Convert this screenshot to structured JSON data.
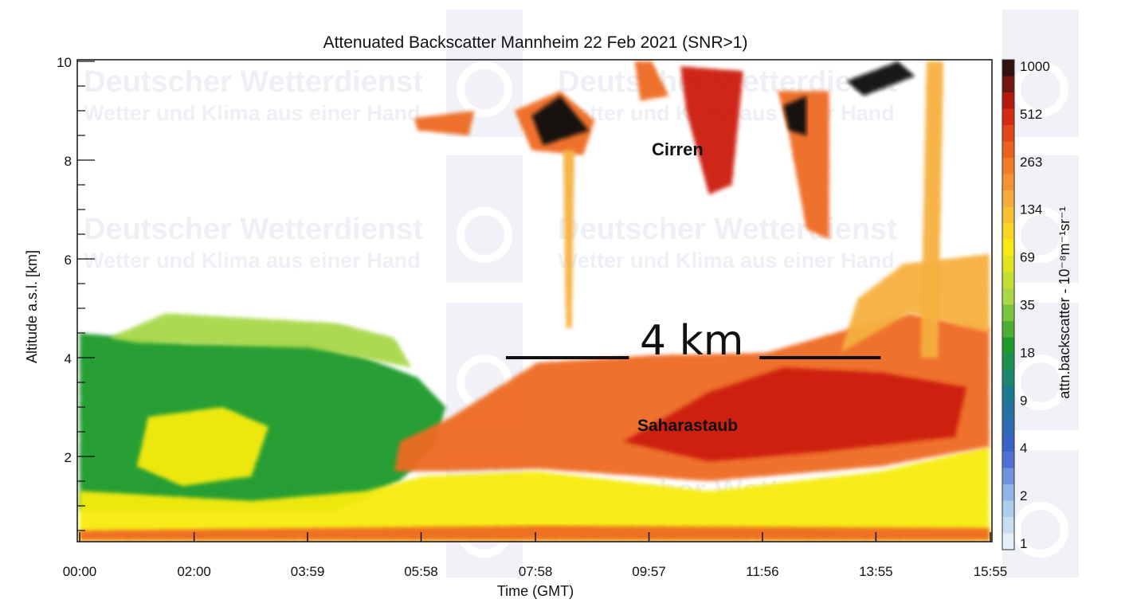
{
  "watermark": {
    "line1": "Deutscher Wetterdienst",
    "line2": "Wetter und Klima aus einer Hand",
    "logo": "DWD"
  },
  "chart_data": {
    "type": "heatmap",
    "title": "Attenuated Backscatter Mannheim 22 Feb 2021 (SNR>1)",
    "xlabel": "Time (GMT)",
    "ylabel": "Altitude a.s.l. [km]",
    "colorbar_label": "attn.backscatter - 10⁻⁸m⁻¹sr⁻¹",
    "xlim_hours": [
      0,
      15.917
    ],
    "ylim_km": [
      0.3,
      10
    ],
    "x_ticks": [
      {
        "label": "00:00",
        "hours": 0
      },
      {
        "label": "02:00",
        "hours": 2
      },
      {
        "label": "03:59",
        "hours": 3.983
      },
      {
        "label": "05:58",
        "hours": 5.967
      },
      {
        "label": "07:58",
        "hours": 7.967
      },
      {
        "label": "09:57",
        "hours": 9.95
      },
      {
        "label": "11:56",
        "hours": 11.933
      },
      {
        "label": "13:55",
        "hours": 13.917
      },
      {
        "label": "15:55",
        "hours": 15.917
      }
    ],
    "y_ticks": [
      {
        "label": "2",
        "km": 2
      },
      {
        "label": "4",
        "km": 4
      },
      {
        "label": "6",
        "km": 6
      },
      {
        "label": "8",
        "km": 8
      },
      {
        "label": "10",
        "km": 10
      }
    ],
    "colorbar_ticks": [
      "1000",
      "512",
      "263",
      "134",
      "69",
      "35",
      "18",
      "9",
      "4",
      "2",
      "1"
    ],
    "colorbar_range": [
      1,
      1000
    ],
    "regions": [
      {
        "name": "boundary-layer-green",
        "value": 18,
        "poly": [
          [
            0,
            0.3
          ],
          [
            0,
            4.5
          ],
          [
            1,
            4.4
          ],
          [
            2,
            4.3
          ],
          [
            3,
            4.3
          ],
          [
            4,
            4.3
          ],
          [
            5,
            4.0
          ],
          [
            5.9,
            3.6
          ],
          [
            6.4,
            3.0
          ],
          [
            6.2,
            2.2
          ],
          [
            5.6,
            1.5
          ],
          [
            4.5,
            0.9
          ],
          [
            0,
            0.9
          ]
        ]
      },
      {
        "name": "boundary-layer-sparse-top",
        "value": 35,
        "poly": [
          [
            0.5,
            4.4
          ],
          [
            1.5,
            4.9
          ],
          [
            3,
            4.8
          ],
          [
            4.5,
            4.7
          ],
          [
            5.5,
            4.4
          ],
          [
            5.8,
            3.8
          ],
          [
            4,
            4.2
          ],
          [
            1,
            4.3
          ]
        ]
      },
      {
        "name": "yellow-patch-early",
        "value": 69,
        "poly": [
          [
            1.2,
            2.8
          ],
          [
            2.5,
            3.0
          ],
          [
            3.3,
            2.6
          ],
          [
            3.0,
            1.6
          ],
          [
            1.8,
            1.4
          ],
          [
            1.0,
            1.8
          ]
        ]
      },
      {
        "name": "near-surface-yellow",
        "value": 69,
        "poly": [
          [
            0,
            0.3
          ],
          [
            0,
            1.3
          ],
          [
            3,
            1.1
          ],
          [
            5,
            1.3
          ],
          [
            6,
            1.6
          ],
          [
            8,
            1.7
          ],
          [
            11,
            1.3
          ],
          [
            14,
            1.7
          ],
          [
            15.9,
            2.2
          ],
          [
            15.9,
            0.3
          ]
        ]
      },
      {
        "name": "saharan-dust-layer",
        "value": 263,
        "poly": [
          [
            5.5,
            1.7
          ],
          [
            5.6,
            2.3
          ],
          [
            6.5,
            2.8
          ],
          [
            8,
            3.9
          ],
          [
            10,
            4.05
          ],
          [
            12,
            4.1
          ],
          [
            13.5,
            4.6
          ],
          [
            14.5,
            4.9
          ],
          [
            15.9,
            4.6
          ],
          [
            15.9,
            2.2
          ],
          [
            14,
            1.8
          ],
          [
            11,
            1.5
          ],
          [
            8,
            1.75
          ],
          [
            6.3,
            1.7
          ]
        ]
      },
      {
        "name": "saharan-dust-core",
        "value": 512,
        "poly": [
          [
            9.5,
            2.3
          ],
          [
            11,
            3.3
          ],
          [
            12.3,
            3.8
          ],
          [
            14,
            3.7
          ],
          [
            15.5,
            3.4
          ],
          [
            15.3,
            2.4
          ],
          [
            13,
            2.1
          ],
          [
            11,
            1.9
          ]
        ]
      },
      {
        "name": "surface-strip",
        "value": 263,
        "poly": [
          [
            0,
            0.3
          ],
          [
            0,
            0.5
          ],
          [
            8,
            0.6
          ],
          [
            15.9,
            0.55
          ],
          [
            15.9,
            0.3
          ]
        ]
      },
      {
        "name": "cirrus-early-patch",
        "value": 263,
        "poly": [
          [
            5.85,
            8.85
          ],
          [
            6.9,
            9.0
          ],
          [
            6.8,
            8.5
          ],
          [
            5.9,
            8.6
          ]
        ]
      },
      {
        "name": "cirrus-main",
        "value": 263,
        "poly": [
          [
            7.6,
            9.0
          ],
          [
            8.4,
            9.4
          ],
          [
            9.0,
            8.8
          ],
          [
            8.8,
            8.1
          ],
          [
            7.9,
            8.2
          ]
        ]
      },
      {
        "name": "cirrus-main-core",
        "value": 1000,
        "poly": [
          [
            7.9,
            8.9
          ],
          [
            8.4,
            9.3
          ],
          [
            8.9,
            8.6
          ],
          [
            8.1,
            8.3
          ]
        ]
      },
      {
        "name": "fallstreak-1",
        "value": 134,
        "poly": [
          [
            8.45,
            8.2
          ],
          [
            8.65,
            8.2
          ],
          [
            8.6,
            4.6
          ],
          [
            8.5,
            4.6
          ]
        ]
      },
      {
        "name": "cirrus-top-1",
        "value": 263,
        "poly": [
          [
            9.7,
            10
          ],
          [
            10.0,
            10
          ],
          [
            10.3,
            9.3
          ],
          [
            9.8,
            9.2
          ]
        ]
      },
      {
        "name": "cirrus-top-2",
        "value": 512,
        "poly": [
          [
            10.5,
            9.9
          ],
          [
            11.6,
            9.8
          ],
          [
            11.4,
            7.5
          ],
          [
            11.0,
            7.3
          ],
          [
            10.6,
            9.0
          ]
        ]
      },
      {
        "name": "cirrus-column",
        "value": 263,
        "poly": [
          [
            12.2,
            9.4
          ],
          [
            13.1,
            9.4
          ],
          [
            13.1,
            6.4
          ],
          [
            12.7,
            6.6
          ],
          [
            12.4,
            8.5
          ]
        ]
      },
      {
        "name": "cirrus-column-core",
        "value": 1000,
        "poly": [
          [
            12.3,
            9.1
          ],
          [
            12.7,
            9.3
          ],
          [
            12.7,
            8.5
          ],
          [
            12.4,
            8.6
          ]
        ]
      },
      {
        "name": "cirrus-top-3",
        "value": 1000,
        "poly": [
          [
            13.4,
            9.6
          ],
          [
            14.3,
            10
          ],
          [
            14.6,
            9.7
          ],
          [
            13.7,
            9.3
          ]
        ]
      },
      {
        "name": "cirrus-right-streak",
        "value": 134,
        "poly": [
          [
            14.8,
            10
          ],
          [
            15.1,
            10
          ],
          [
            15.0,
            4
          ],
          [
            14.7,
            4
          ]
        ]
      },
      {
        "name": "mid-level-right",
        "value": 134,
        "poly": [
          [
            13.3,
            4.1
          ],
          [
            13.6,
            5.2
          ],
          [
            14.4,
            5.9
          ],
          [
            15.9,
            6.1
          ],
          [
            15.9,
            4.5
          ],
          [
            14.5,
            4.9
          ]
        ]
      }
    ],
    "annotations": [
      {
        "text": "Cirren"
      },
      {
        "text": "Saharastaub"
      },
      {
        "text": "4 km",
        "altitude_km": 4,
        "line_hours": [
          [
            7.45,
            9.6
          ],
          [
            11.88,
            14.0
          ]
        ]
      }
    ]
  }
}
